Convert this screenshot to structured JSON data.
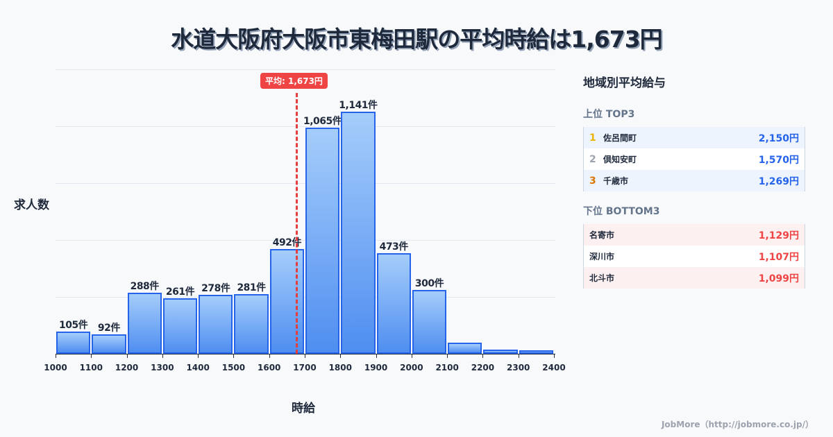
{
  "title": "水道大阪府大阪市東梅田駅の平均時給は1,673円",
  "chart_data": {
    "type": "bar",
    "title": "水道大阪府大阪市東梅田駅の平均時給は1,673円",
    "xlabel": "時給",
    "ylabel": "求人数",
    "x_ticks": [
      "1000",
      "1100",
      "1200",
      "1300",
      "1400",
      "1500",
      "1600",
      "1700",
      "1800",
      "1900",
      "2000",
      "2100",
      "2200",
      "2300",
      "2400"
    ],
    "categories": [
      "1000-1100",
      "1100-1200",
      "1200-1300",
      "1300-1400",
      "1400-1500",
      "1500-1600",
      "1600-1700",
      "1700-1800",
      "1800-1900",
      "1900-2000",
      "2000-2100",
      "2100-2200",
      "2200-2300",
      "2300-2400"
    ],
    "values": [
      105,
      92,
      288,
      261,
      278,
      281,
      492,
      1065,
      1141,
      473,
      300,
      52,
      20,
      16
    ],
    "value_labels": [
      "105件",
      "92件",
      "288件",
      "261件",
      "278件",
      "281件",
      "492件",
      "1,065件",
      "1,141件",
      "473件",
      "300件",
      "",
      "",
      ""
    ],
    "unit": "件",
    "mean_line": {
      "value": 1673,
      "label": "平均: 1,673円",
      "color": "#ef4444"
    },
    "xlim": [
      1000,
      2400
    ],
    "grid": true,
    "bar_color": "#4f8ef0",
    "bar_edge_color": "#2563eb"
  },
  "panel": {
    "title": "地域別平均給与",
    "top": {
      "title": "上位 TOP3",
      "items": [
        {
          "rank": "1",
          "rank_color": "#eab308",
          "name": "佐呂間町",
          "value": "2,150円"
        },
        {
          "rank": "2",
          "rank_color": "#9ca3af",
          "name": "倶知安町",
          "value": "1,570円"
        },
        {
          "rank": "3",
          "rank_color": "#d97706",
          "name": "千歳市",
          "value": "1,269円"
        }
      ]
    },
    "bottom": {
      "title": "下位 BOTTOM3",
      "items": [
        {
          "name": "名寄市",
          "value": "1,129円"
        },
        {
          "name": "深川市",
          "value": "1,107円"
        },
        {
          "name": "北斗市",
          "value": "1,099円"
        }
      ]
    }
  },
  "footer": "JobMore（http://jobmore.co.jp/）"
}
